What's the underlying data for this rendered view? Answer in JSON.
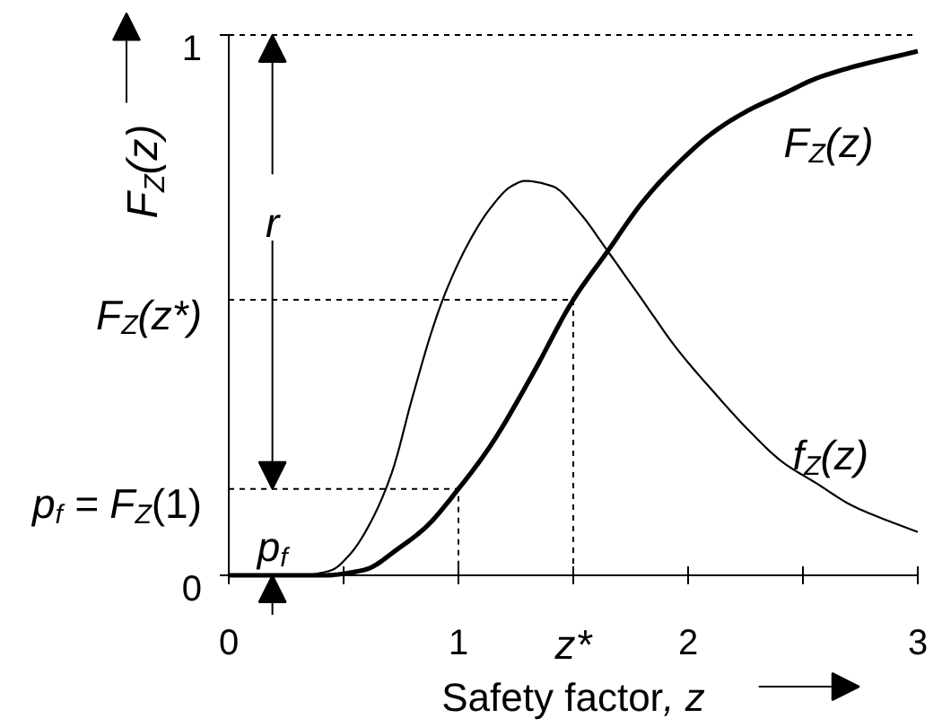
{
  "chart_data": {
    "type": "line",
    "xlabel": "Safety factor, z",
    "ylabel": "F$_{Z}$(z)",
    "xlim": [
      0,
      3
    ],
    "ylim": [
      0,
      1
    ],
    "xticks": [
      0,
      {
        "value": 0.5,
        "label": null
      },
      1,
      {
        "value": 1.5,
        "label": "z*"
      },
      2,
      {
        "value": 2.5,
        "label": null
      },
      3
    ],
    "yticks": [
      0,
      1
    ],
    "series": [
      {
        "name": "F$_{Z}$(z)",
        "color": "#000000",
        "x": [
          0,
          0.41,
          0.59,
          0.74,
          0.86,
          1,
          1.14,
          1.32,
          1.5,
          1.65,
          1.8,
          1.95,
          2.11,
          2.26,
          2.41,
          2.56,
          2.71,
          3
        ],
        "values": [
          0,
          0,
          0.01,
          0.05,
          0.09,
          0.16,
          0.24,
          0.37,
          0.51,
          0.6,
          0.69,
          0.76,
          0.82,
          0.86,
          0.89,
          0.92,
          0.94,
          0.97
        ]
      },
      {
        "name": "f$_{Z}$(z)",
        "color": "#000000",
        "x": [
          0.35,
          0.45,
          0.53,
          0.62,
          0.71,
          0.8,
          0.89,
          0.95,
          1.05,
          1.14,
          1.23,
          1.29,
          1.41,
          1.53,
          1.65,
          1.8,
          1.95,
          2.11,
          2.26,
          2.41,
          2.56,
          2.71,
          3
        ],
        "values": [
          0,
          0.01,
          0.04,
          0.1,
          0.19,
          0.33,
          0.46,
          0.53,
          0.62,
          0.68,
          0.72,
          0.73,
          0.72,
          0.67,
          0.6,
          0.51,
          0.42,
          0.34,
          0.27,
          0.21,
          0.17,
          0.13,
          0.08
        ]
      },
      {
        "name": "p$_{f}$ = F$_{Z}$(1)",
        "color": "#000000",
        "line_style": "dotted",
        "x": [
          0,
          1,
          1
        ],
        "values": [
          0.16,
          0.16,
          0
        ]
      },
      {
        "name": "F$_{Z}$(z*)",
        "color": "#000000",
        "line_style": "dotted",
        "x": [
          0,
          1.5,
          1.5
        ],
        "values": [
          0.51,
          0.51,
          0
        ]
      }
    ],
    "ref_lines": [
      {
        "axis": "y",
        "value": 1,
        "line_style": "dotted"
      }
    ],
    "annotations": [
      {
        "text": "r",
        "x": 0.19,
        "y": 0.16
      },
      {
        "text": "p$_{f}$",
        "x": 0.19,
        "y": 0
      }
    ]
  }
}
